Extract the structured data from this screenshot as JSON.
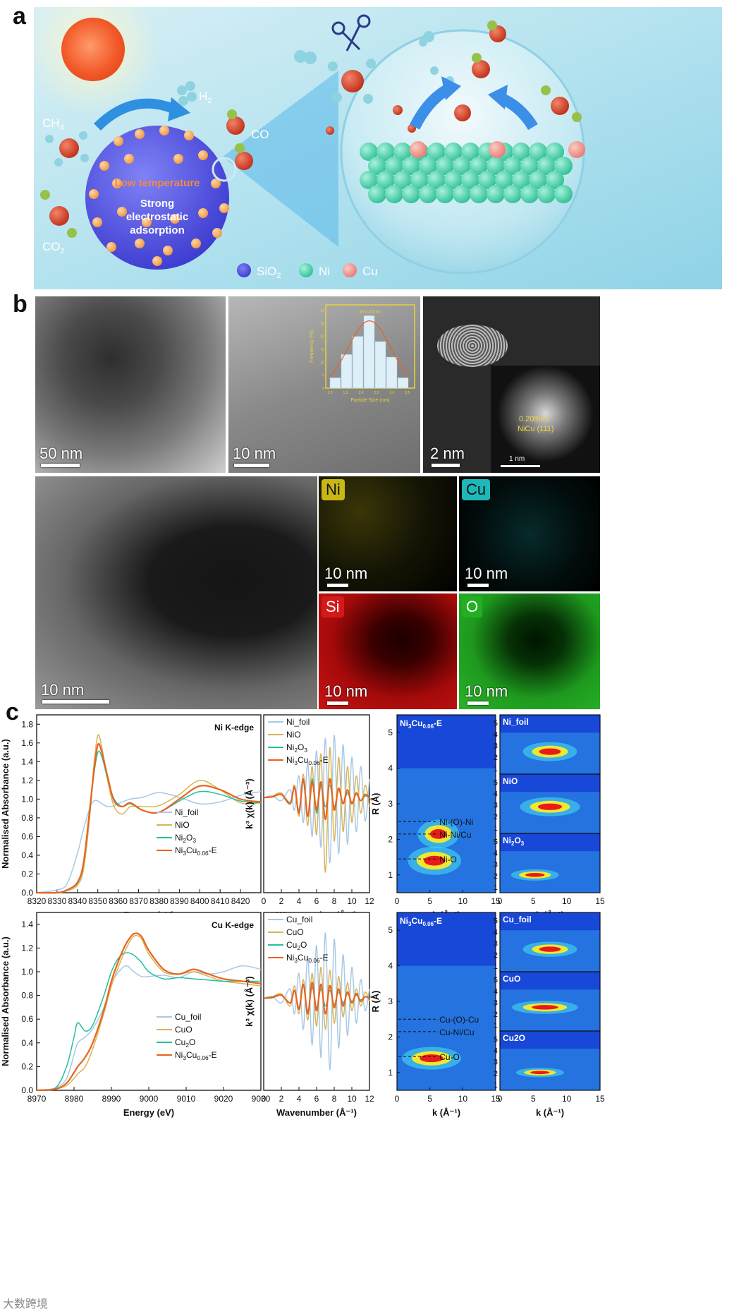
{
  "panel_labels": {
    "a": "a",
    "b": "b",
    "c": "c"
  },
  "schematic": {
    "ch4": "CH",
    "ch4_sub": "4",
    "h2": "H",
    "h2_sub": "2",
    "co": "CO",
    "co2": "CO",
    "co2_sub": "2",
    "low_temp": "Low temperature",
    "sphere_line1": "Strong",
    "sphere_line2": "electrostatic",
    "sphere_line3": "adsorption",
    "legend_sio2": "SiO",
    "legend_sio2_sub": "2",
    "legend_ni": "Ni",
    "legend_cu": "Cu",
    "colors": {
      "sio2": "#4d4fe0",
      "ni": "#3fcfa4",
      "cu": "#f08e86",
      "sky": "#bfe8f2"
    }
  },
  "microscopy": {
    "tem1_scale": "50 nm",
    "tem2_scale": "10 nm",
    "haadf_scale": "2 nm",
    "inset_scale": "1 nm",
    "inset_d": "0.209nm",
    "inset_plane": "NiCu (111)",
    "haadf2_scale": "10 nm",
    "eds": [
      {
        "label": "Ni",
        "scale": "10 nm",
        "color": "#e6d020"
      },
      {
        "label": "Cu",
        "scale": "10 nm",
        "color": "#2fd4d4"
      },
      {
        "label": "Si",
        "scale": "10 nm",
        "color": "#e01818"
      },
      {
        "label": "O",
        "scale": "10 nm",
        "color": "#22c422"
      }
    ],
    "hist": {
      "title": "2±1.21nm",
      "xlabel": "Particle Size (nm)",
      "ylabel": "Frequency (%)",
      "yticks": [
        "0",
        "5",
        "10",
        "15",
        "20",
        "25",
        "30"
      ],
      "xticks": [
        "1.0",
        "1.5",
        "2.0",
        "2.5",
        "3.0",
        "3.5"
      ],
      "bars": [
        4,
        13,
        20,
        28,
        18,
        12,
        4
      ]
    }
  },
  "xanes_ni": {
    "title": "Ni K-edge",
    "xlabel": "Energy (eV)",
    "ylabel": "Normalised Absorbance (a.u.)",
    "xticks": [
      "8320",
      "8330",
      "8340",
      "8350",
      "8360",
      "8370",
      "8380",
      "8390",
      "8400",
      "8410",
      "8420"
    ],
    "yticks": [
      "0.0",
      "0.2",
      "0.4",
      "0.6",
      "0.8",
      "1.0",
      "1.2",
      "1.4",
      "1.6",
      "1.8"
    ],
    "legend": [
      {
        "name": "Ni_foil",
        "color": "#a9c8e4"
      },
      {
        "name": "NiO",
        "color": "#d8b458"
      },
      {
        "name": "Ni2O3",
        "color": "#23c0a0"
      },
      {
        "name": "Ni3Cu0.06-E",
        "color": "#e8641c"
      }
    ]
  },
  "exafs_ni": {
    "xlabel": "Wavenumber (Å⁻¹)",
    "ylabel": "k³ χ(k) (Å⁻³)",
    "xticks": [
      "0",
      "2",
      "4",
      "6",
      "8",
      "10",
      "12"
    ],
    "legend": [
      {
        "name": "Ni_foil",
        "color": "#a9c8e4"
      },
      {
        "name": "NiO",
        "color": "#d8b458"
      },
      {
        "name": "Ni2O3",
        "color": "#23c0a0"
      },
      {
        "name": "Ni3Cu0.06-E",
        "color": "#e8641c"
      }
    ]
  },
  "wt_ni": {
    "main_label": "Ni3Cu0.06-E",
    "ylabel": "R (Å)",
    "xlabel": "k (Å⁻¹)",
    "xticks": [
      "0",
      "5",
      "10",
      "15"
    ],
    "yticks": [
      "1",
      "2",
      "3",
      "4",
      "5"
    ],
    "annotations": [
      "Ni-(O)-Ni",
      "Ni-Ni/Cu",
      "Ni-O"
    ],
    "refs": [
      "Ni_foil",
      "NiO",
      "Ni2O3"
    ],
    "small_yticks": [
      "1",
      "2",
      "3",
      "4",
      "5"
    ]
  },
  "xanes_cu": {
    "title": "Cu K-edge",
    "xlabel": "Energy (eV)",
    "ylabel": "Normalised Absorbance (a.u.)",
    "xticks": [
      "8970",
      "8980",
      "8990",
      "9000",
      "9010",
      "9020",
      "9030"
    ],
    "yticks": [
      "0.0",
      "0.2",
      "0.4",
      "0.6",
      "0.8",
      "1.0",
      "1.2",
      "1.4"
    ],
    "legend": [
      {
        "name": "Cu_foil",
        "color": "#a9c8e4"
      },
      {
        "name": "CuO",
        "color": "#d8b458"
      },
      {
        "name": "Cu2O",
        "color": "#23c0a0"
      },
      {
        "name": "Ni3Cu0.06-E",
        "color": "#e8641c"
      }
    ]
  },
  "exafs_cu": {
    "xlabel": "Wavenumber (Å⁻¹)",
    "ylabel": "k³ χ(k) (Å⁻³)",
    "xticks": [
      "0",
      "2",
      "4",
      "6",
      "8",
      "10",
      "12"
    ],
    "legend": [
      {
        "name": "Cu_foil",
        "color": "#a9c8e4"
      },
      {
        "name": "CuO",
        "color": "#d8b458"
      },
      {
        "name": "Cu2O",
        "color": "#23c0a0"
      },
      {
        "name": "Ni3Cu0.06-E",
        "color": "#e8641c"
      }
    ]
  },
  "wt_cu": {
    "main_label": "Ni3Cu0.06-E",
    "ylabel": "R (Å)",
    "xlabel": "k (Å⁻¹)",
    "xticks": [
      "0",
      "5",
      "10",
      "15"
    ],
    "yticks": [
      "1",
      "2",
      "3",
      "4",
      "5"
    ],
    "annotations": [
      "Cu-(O)-Cu",
      "Cu-Ni/Cu",
      "Cu-O"
    ],
    "refs": [
      "Cu_foil",
      "CuO",
      "Cu2O"
    ],
    "small_yticks": [
      "1",
      "2",
      "3",
      "4",
      "5"
    ]
  },
  "watermark": "大数跨境",
  "chart_data": [
    {
      "type": "line",
      "title": "Ni K-edge",
      "xlabel": "Energy (eV)",
      "ylabel": "Normalised Absorbance (a.u.)",
      "xlim": [
        8320,
        8430
      ],
      "ylim": [
        0,
        1.9
      ],
      "x": [
        8320,
        8330,
        8335,
        8340,
        8343,
        8346,
        8348,
        8350,
        8352,
        8355,
        8358,
        8362,
        8366,
        8372,
        8380,
        8390,
        8400,
        8410,
        8420,
        8430
      ],
      "series": [
        {
          "name": "Ni_foil",
          "values": [
            0.0,
            0.03,
            0.1,
            0.42,
            0.68,
            0.9,
            0.98,
            0.98,
            0.95,
            0.92,
            0.93,
            0.97,
            1.0,
            1.02,
            1.07,
            1.02,
            0.95,
            0.97,
            1.04,
            1.08
          ]
        },
        {
          "name": "NiO",
          "values": [
            0.0,
            0.0,
            0.02,
            0.08,
            0.25,
            0.8,
            1.35,
            1.68,
            1.55,
            1.18,
            0.92,
            0.84,
            0.92,
            0.92,
            0.93,
            1.05,
            1.2,
            1.1,
            0.96,
            0.96
          ]
        },
        {
          "name": "Ni2O3",
          "values": [
            0.0,
            0.0,
            0.03,
            0.1,
            0.3,
            0.85,
            1.25,
            1.5,
            1.45,
            1.2,
            1.0,
            0.92,
            0.95,
            0.88,
            0.86,
            0.98,
            1.08,
            1.05,
            0.98,
            0.96
          ]
        },
        {
          "name": "Ni3Cu0.06-E",
          "values": [
            0.0,
            0.0,
            0.03,
            0.11,
            0.32,
            0.88,
            1.28,
            1.58,
            1.5,
            1.22,
            0.98,
            0.92,
            0.96,
            0.88,
            0.86,
            1.0,
            1.14,
            1.1,
            1.0,
            0.97
          ]
        }
      ]
    },
    {
      "type": "line",
      "title": "",
      "xlabel": "Wavenumber (Å⁻¹)",
      "ylabel": "k³ χ(k) (Å⁻³)",
      "xlim": [
        0,
        12
      ],
      "x": [
        0,
        1,
        2,
        3,
        3.5,
        4,
        4.5,
        5,
        5.5,
        6,
        6.5,
        7,
        7.5,
        8,
        8.5,
        9,
        9.5,
        10,
        10.5,
        11,
        11.5,
        12
      ],
      "series": [
        {
          "name": "Ni_foil",
          "values": [
            0,
            0.1,
            -0.2,
            0.5,
            -0.8,
            1.4,
            -1.6,
            2.2,
            -2.5,
            3.0,
            -3.2,
            3.8,
            -4.2,
            4.0,
            -3.6,
            3.4,
            -3.0,
            2.6,
            -2.2,
            2.0,
            -1.5,
            1.2
          ]
        },
        {
          "name": "NiO",
          "values": [
            0,
            0.1,
            0.3,
            -0.4,
            0.8,
            -1.2,
            1.5,
            -1.8,
            2.0,
            -2.4,
            2.8,
            -4.8,
            3.2,
            -2.8,
            2.6,
            -2.2,
            2.0,
            -1.6,
            1.4,
            -1.0,
            0.8,
            -0.6
          ]
        },
        {
          "name": "Ni2O3",
          "values": [
            0,
            0.05,
            0.2,
            -0.3,
            0.6,
            -0.8,
            1.0,
            -1.2,
            1.2,
            -1.0,
            0.8,
            -0.6,
            0.8,
            -0.6,
            0.5,
            -0.4,
            0.3,
            -0.3,
            0.2,
            -0.2,
            0.1,
            0
          ]
        },
        {
          "name": "Ni3Cu0.06-E",
          "values": [
            0,
            0.05,
            0.2,
            -0.4,
            0.7,
            -1.0,
            1.2,
            -1.2,
            1.0,
            -0.8,
            1.0,
            -1.4,
            1.2,
            -0.8,
            0.6,
            -0.4,
            0.5,
            -0.4,
            0.3,
            -0.2,
            0.2,
            0
          ]
        }
      ]
    },
    {
      "type": "line",
      "title": "Cu K-edge",
      "xlabel": "Energy (eV)",
      "ylabel": "Normalised Absorbance (a.u.)",
      "xlim": [
        8970,
        9030
      ],
      "ylim": [
        0,
        1.5
      ],
      "x": [
        8970,
        8975,
        8978,
        8980,
        8981,
        8983,
        8985,
        8988,
        8990,
        8992,
        8994,
        8996,
        8998,
        9000,
        9004,
        9008,
        9012,
        9016,
        9020,
        9025,
        9030
      ],
      "series": [
        {
          "name": "Cu_foil",
          "values": [
            0.0,
            0.02,
            0.1,
            0.3,
            0.4,
            0.45,
            0.52,
            0.7,
            0.9,
            1.0,
            1.05,
            1.0,
            0.96,
            0.96,
            0.97,
            0.95,
            1.0,
            0.98,
            1.0,
            1.05,
            1.02
          ]
        },
        {
          "name": "CuO",
          "values": [
            0.0,
            0.01,
            0.04,
            0.1,
            0.14,
            0.2,
            0.35,
            0.65,
            0.88,
            1.05,
            1.2,
            1.3,
            1.28,
            1.15,
            1.0,
            0.98,
            1.0,
            0.96,
            0.92,
            0.9,
            0.88
          ]
        },
        {
          "name": "Cu2O",
          "values": [
            0.0,
            0.02,
            0.2,
            0.45,
            0.57,
            0.5,
            0.55,
            0.8,
            1.0,
            1.12,
            1.16,
            1.14,
            1.08,
            1.0,
            0.94,
            0.95,
            0.94,
            0.93,
            0.92,
            0.92,
            0.92
          ]
        },
        {
          "name": "Ni3Cu0.06-E",
          "values": [
            0.0,
            0.01,
            0.06,
            0.15,
            0.2,
            0.28,
            0.4,
            0.68,
            0.92,
            1.1,
            1.24,
            1.32,
            1.3,
            1.18,
            1.02,
            0.98,
            1.02,
            0.98,
            0.94,
            0.92,
            0.9
          ]
        }
      ]
    },
    {
      "type": "line",
      "title": "",
      "xlabel": "Wavenumber (Å⁻¹)",
      "ylabel": "k³ χ(k) (Å⁻³)",
      "xlim": [
        0,
        12
      ],
      "x": [
        0,
        1,
        2,
        3,
        3.5,
        4,
        4.5,
        5,
        5.5,
        6,
        6.5,
        7,
        7.5,
        8,
        8.5,
        9,
        9.5,
        10,
        10.5,
        11,
        11.5,
        12
      ],
      "series": [
        {
          "name": "Cu_foil",
          "values": [
            0,
            0.1,
            -0.3,
            0.6,
            -1.0,
            1.6,
            -2.0,
            2.6,
            -3.0,
            3.4,
            -3.8,
            4.2,
            -4.6,
            3.8,
            -3.2,
            2.8,
            -2.4,
            2.0,
            -1.6,
            1.2,
            -0.8,
            0.6
          ]
        },
        {
          "name": "CuO",
          "values": [
            0,
            0.1,
            0.3,
            -0.5,
            0.8,
            -1.0,
            1.2,
            -1.4,
            1.6,
            -1.8,
            2.0,
            -2.0,
            1.8,
            -1.6,
            1.4,
            -1.2,
            1.0,
            -0.8,
            0.6,
            -0.5,
            0.4,
            -0.2
          ]
        },
        {
          "name": "Cu2O",
          "values": [
            0,
            0.1,
            0.2,
            -0.3,
            0.5,
            -0.6,
            0.8,
            -0.8,
            0.7,
            -0.6,
            0.6,
            -0.5,
            0.5,
            -0.4,
            0.4,
            -0.3,
            0.3,
            -0.2,
            0.2,
            -0.1,
            0.1,
            0
          ]
        },
        {
          "name": "Ni3Cu0.06-E",
          "values": [
            0,
            0.05,
            0.2,
            -0.3,
            0.5,
            -0.7,
            0.9,
            -1.0,
            1.0,
            -0.8,
            0.9,
            -1.0,
            0.8,
            -0.6,
            0.6,
            -0.5,
            0.4,
            -0.3,
            0.3,
            -0.2,
            0.1,
            0
          ]
        }
      ]
    }
  ]
}
